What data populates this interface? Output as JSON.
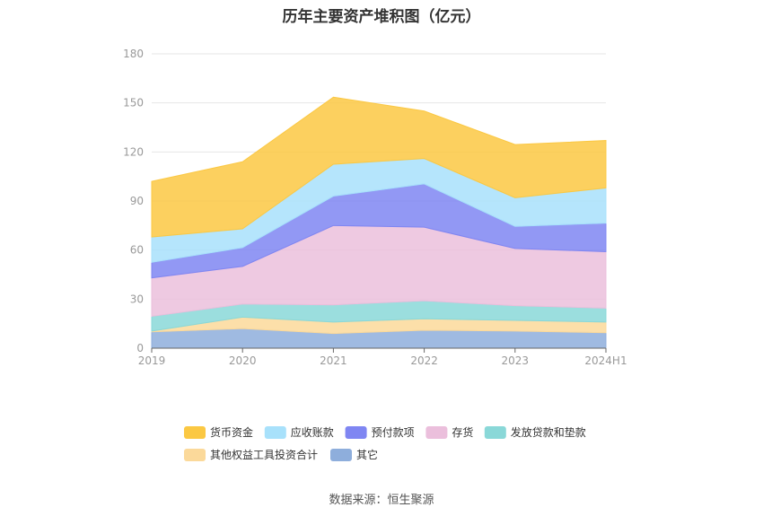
{
  "chart_data": {
    "type": "area",
    "stacked": true,
    "title": "历年主要资产堆积图（亿元）",
    "source": "数据来源：恒生聚源",
    "categories": [
      "2019",
      "2020",
      "2021",
      "2022",
      "2023",
      "2024H1"
    ],
    "ylim": [
      0,
      180
    ],
    "yticks": [
      "0",
      "30",
      "60",
      "90",
      "120",
      "150",
      "180"
    ],
    "grid": true,
    "legend_position": "bottom",
    "series": [
      {
        "name": "其它",
        "color": "#8eaedc",
        "values": [
          10,
          12,
          9,
          11,
          10.5,
          9.5
        ]
      },
      {
        "name": "其他权益工具投资合计",
        "color": "#fbd99a",
        "values": [
          0.5,
          7,
          7,
          7,
          6.5,
          6.5
        ]
      },
      {
        "name": "发放贷款和垫款",
        "color": "#8ad8d8",
        "values": [
          9,
          8,
          10.5,
          11,
          9,
          8.5
        ]
      },
      {
        "name": "存货",
        "color": "#ebbfdc",
        "values": [
          23.5,
          23,
          48.5,
          45,
          35,
          34.5
        ]
      },
      {
        "name": "预付款项",
        "color": "#7f86f2",
        "values": [
          9.5,
          11.5,
          18,
          26.5,
          13.5,
          17.5
        ]
      },
      {
        "name": "应收账款",
        "color": "#a8e1fb",
        "values": [
          15.5,
          11.5,
          19.5,
          15.5,
          17.5,
          21.5
        ]
      },
      {
        "name": "货币资金",
        "color": "#fbc843",
        "values": [
          34,
          41,
          41,
          29,
          32.5,
          29
        ]
      }
    ],
    "legend_order": [
      "货币资金",
      "应收账款",
      "预付款项",
      "存货",
      "发放贷款和垫款",
      "其他权益工具投资合计",
      "其它"
    ]
  }
}
